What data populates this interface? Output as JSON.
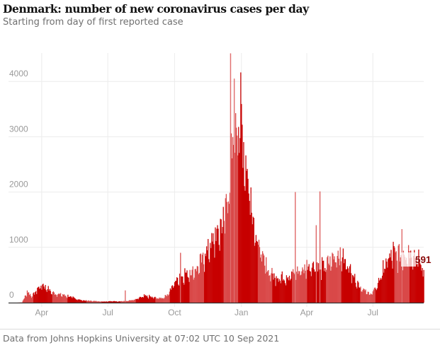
{
  "header": {
    "title": "Denmark: number of new coronavirus cases per day",
    "subtitle": "Starting from day of first reported case"
  },
  "footer": {
    "source": "Data from Johns Hopkins University at 07:02 UTC 10 Sep 2021"
  },
  "colors": {
    "bar_dark": "#c70000",
    "bar_light": "#d94848",
    "label": "#8a0a0a",
    "grid": "#ececec",
    "axis": "#333333"
  },
  "chart_data": {
    "type": "bar",
    "title": "Denmark: number of new coronavirus cases per day",
    "subtitle": "Starting from day of first reported case",
    "xlabel": "",
    "ylabel": "",
    "x_start_date": "2020-02-27",
    "x_end_date": "2021-09-09",
    "ylim": [
      0,
      4500
    ],
    "y_ticks": [
      0,
      1000,
      2000,
      3000,
      4000
    ],
    "x_ticks": [
      {
        "label": "Apr",
        "date": "2020-04-01"
      },
      {
        "label": "Jul",
        "date": "2020-07-01"
      },
      {
        "label": "Oct",
        "date": "2020-10-01"
      },
      {
        "label": "Jan",
        "date": "2021-01-01"
      },
      {
        "label": "Apr",
        "date": "2021-04-01"
      },
      {
        "label": "Jul",
        "date": "2021-07-01"
      }
    ],
    "grid": true,
    "weekly_baseline_note": "Approximate daily new cases, one value per week (interpolated daily), starting 2020-02-27",
    "weekly_values": [
      0,
      5,
      200,
      120,
      250,
      330,
      260,
      180,
      160,
      140,
      120,
      90,
      60,
      40,
      35,
      30,
      25,
      20,
      25,
      30,
      20,
      30,
      40,
      50,
      80,
      120,
      110,
      90,
      80,
      100,
      200,
      380,
      480,
      520,
      560,
      600,
      700,
      900,
      1050,
      1200,
      1350,
      1700,
      2400,
      3300,
      3400,
      2600,
      1900,
      1300,
      900,
      650,
      520,
      480,
      460,
      480,
      520,
      560,
      600,
      650,
      700,
      650,
      640,
      700,
      800,
      900,
      820,
      700,
      550,
      350,
      250,
      170,
      180,
      350,
      600,
      800,
      900,
      850,
      900,
      950,
      900,
      750,
      600
    ],
    "spikes": [
      {
        "date": "2020-07-25",
        "value": 220
      },
      {
        "date": "2020-10-09",
        "value": 900
      },
      {
        "date": "2020-12-17",
        "value": 4508
      },
      {
        "date": "2020-12-22",
        "value": 4050
      },
      {
        "date": "2021-03-16",
        "value": 2000
      },
      {
        "date": "2021-04-19",
        "value": 2010
      },
      {
        "date": "2021-04-14",
        "value": 1400
      },
      {
        "date": "2021-08-10",
        "value": 1330
      }
    ],
    "latest_value": 591,
    "annotations": [
      {
        "text": "591",
        "target": "latest 7-day value"
      }
    ]
  }
}
